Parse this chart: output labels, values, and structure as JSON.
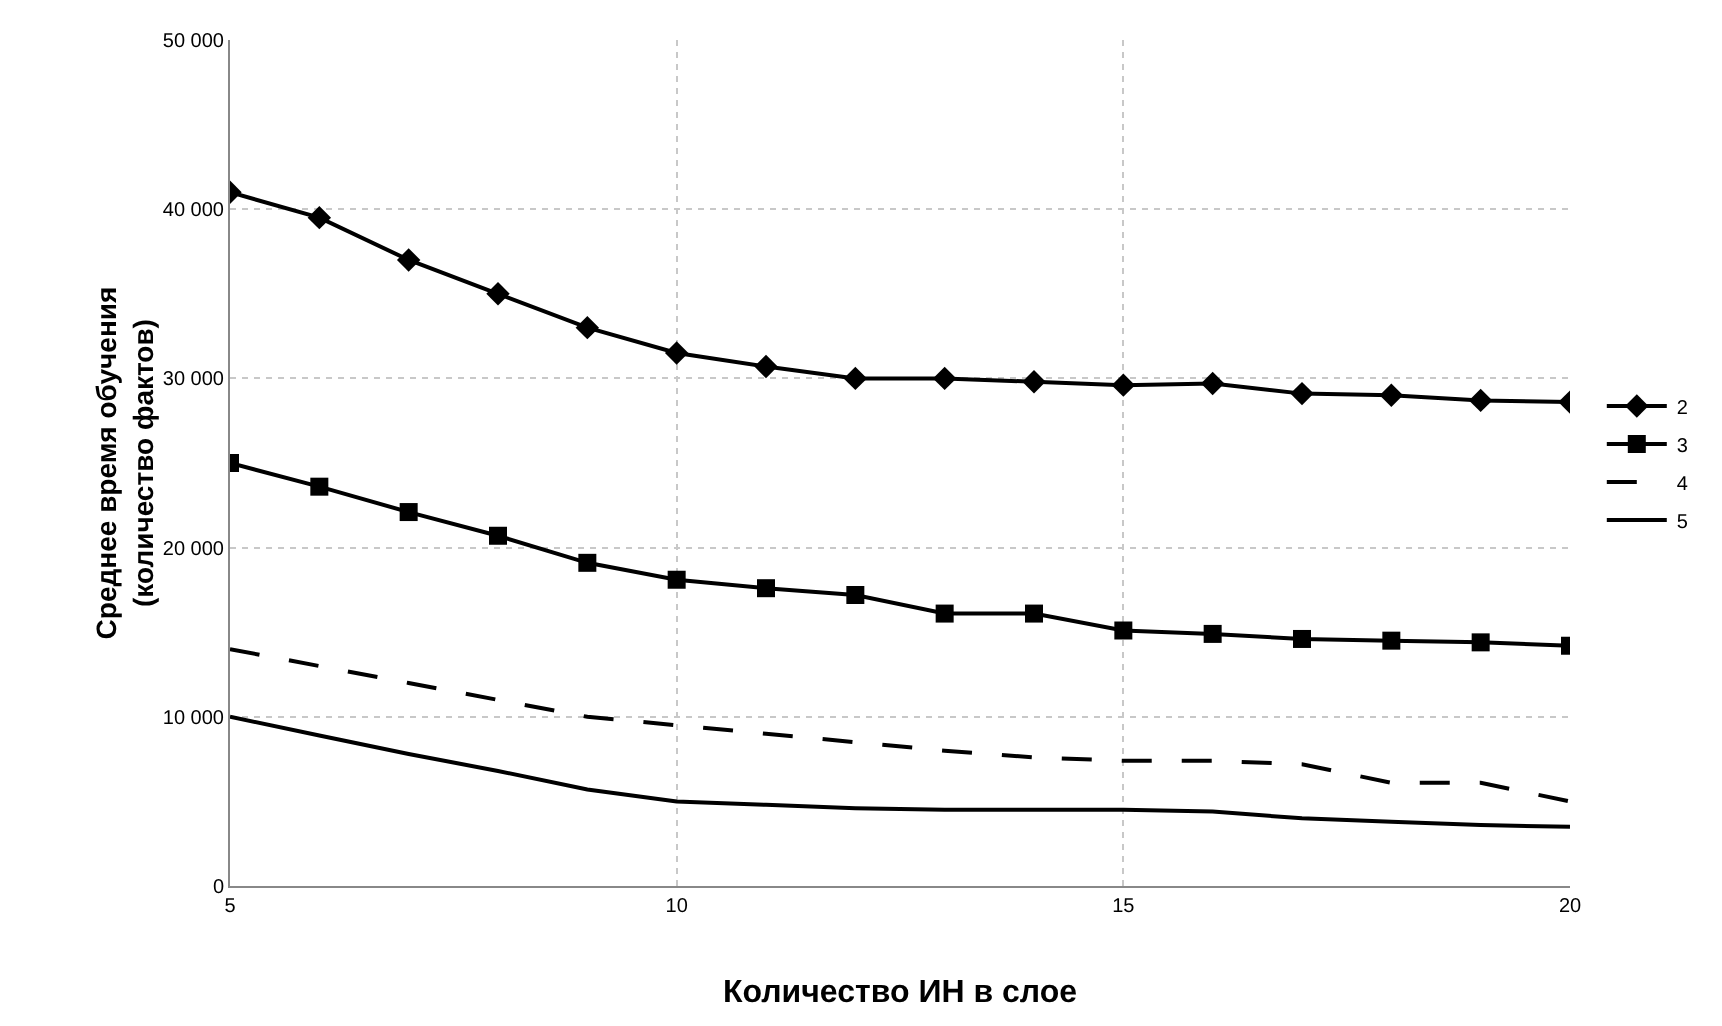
{
  "chart_data": {
    "type": "line",
    "xlabel": "Количество ИН в слое",
    "ylabel": "Среднее время обучения\n(количество фактов)",
    "x": [
      5,
      6,
      7,
      8,
      9,
      10,
      11,
      12,
      13,
      14,
      15,
      16,
      17,
      18,
      19,
      20
    ],
    "series": [
      {
        "name": "2",
        "color": "#000000",
        "marker": "diamond",
        "line_style": "solid",
        "values": [
          41000,
          39500,
          37000,
          35000,
          33000,
          31500,
          30700,
          30000,
          30000,
          29800,
          29600,
          29700,
          29100,
          29000,
          28700,
          28600
        ]
      },
      {
        "name": "3",
        "color": "#000000",
        "marker": "square",
        "line_style": "solid",
        "values": [
          25000,
          23600,
          22100,
          20700,
          19100,
          18100,
          17600,
          17200,
          16100,
          16100,
          15100,
          14900,
          14600,
          14500,
          14400,
          14200
        ]
      },
      {
        "name": "4",
        "color": "#000000",
        "marker": "none",
        "line_style": "dashed",
        "values": [
          14000,
          13000,
          12000,
          11000,
          10000,
          9500,
          9000,
          8500,
          8000,
          7600,
          7400,
          7400,
          7200,
          6100,
          6100,
          5000
        ]
      },
      {
        "name": "5",
        "color": "#000000",
        "marker": "none",
        "line_style": "solid",
        "values": [
          10000,
          8900,
          7800,
          6800,
          5700,
          5000,
          4800,
          4600,
          4500,
          4500,
          4500,
          4400,
          4000,
          3800,
          3600,
          3500
        ]
      }
    ],
    "xlim": [
      5,
      20
    ],
    "xticks": [
      5,
      10,
      15,
      20
    ],
    "ylim": [
      0,
      50000
    ],
    "yticks": [
      {
        "value": 0,
        "label": "0"
      },
      {
        "value": 10000,
        "label": "10 000"
      },
      {
        "value": 20000,
        "label": "20 000"
      },
      {
        "value": 30000,
        "label": "30 000"
      },
      {
        "value": 40000,
        "label": "40 000"
      },
      {
        "value": 50000,
        "label": "50 000"
      }
    ],
    "grid": true,
    "legend": "right"
  }
}
